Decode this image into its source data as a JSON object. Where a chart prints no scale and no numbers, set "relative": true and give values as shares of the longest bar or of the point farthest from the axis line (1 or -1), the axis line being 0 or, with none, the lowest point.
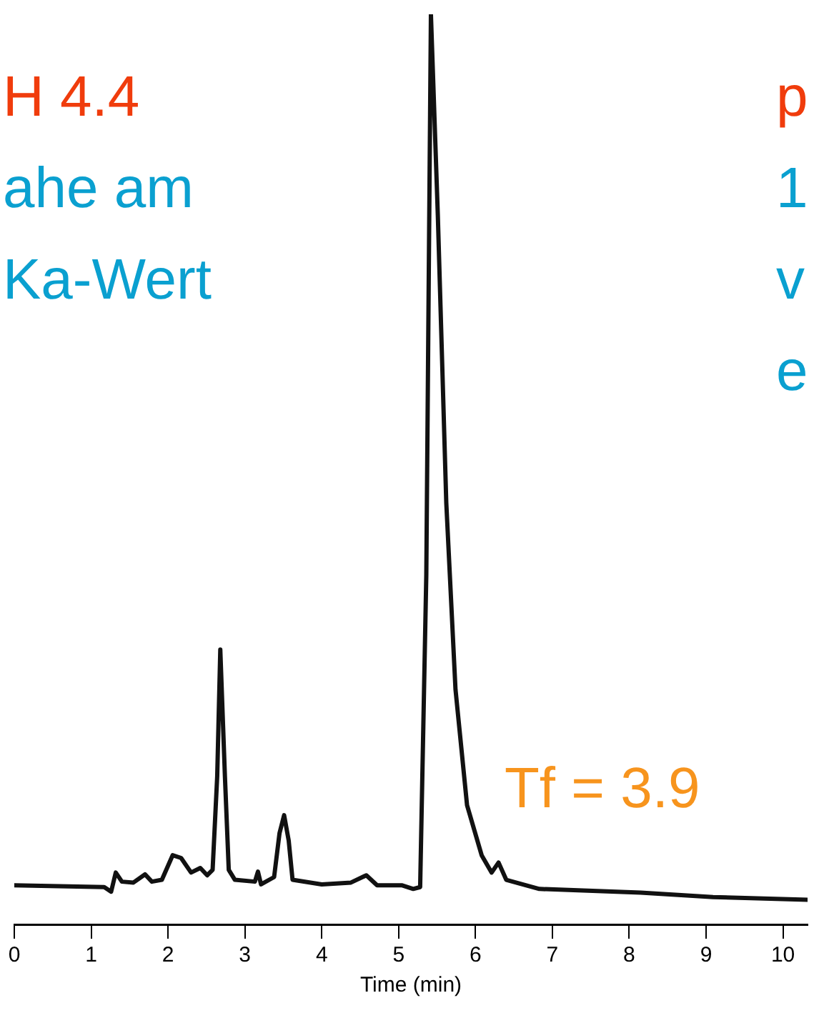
{
  "chart_data": {
    "type": "line",
    "relative": true,
    "xlabel": "Time (min)",
    "xlim": [
      0,
      10.32
    ],
    "xticks": [
      0,
      1,
      2,
      3,
      4,
      5,
      6,
      7,
      8,
      9,
      10
    ],
    "grid": false,
    "legend": false,
    "marker": "none",
    "line_style": "solid",
    "annotations": [
      "H 4.4",
      "ahe am",
      "Ka-Wert",
      "p",
      "1",
      "v",
      "e",
      "Tf = 3.9"
    ],
    "series": [
      {
        "color": "#111111",
        "x": [
          0,
          1.17,
          1.26,
          1.32,
          1.4,
          1.55,
          1.7,
          1.79,
          1.92,
          2.06,
          2.17,
          2.3,
          2.42,
          2.51,
          2.58,
          2.64,
          2.68,
          2.74,
          2.79,
          2.87,
          3.13,
          3.17,
          3.21,
          3.38,
          3.45,
          3.51,
          3.57,
          3.62,
          4.0,
          4.38,
          4.58,
          4.72,
          5.04,
          5.19,
          5.28,
          5.36,
          5.42,
          5.51,
          5.62,
          5.74,
          5.89,
          6.08,
          6.21,
          6.3,
          6.4,
          6.83,
          8.15,
          9.09,
          10.32
        ],
        "values": [
          0.043,
          0.041,
          0.036,
          0.057,
          0.047,
          0.046,
          0.055,
          0.047,
          0.049,
          0.076,
          0.073,
          0.057,
          0.062,
          0.054,
          0.06,
          0.163,
          0.302,
          0.163,
          0.06,
          0.049,
          0.047,
          0.058,
          0.044,
          0.052,
          0.1,
          0.12,
          0.092,
          0.049,
          0.044,
          0.046,
          0.054,
          0.043,
          0.043,
          0.039,
          0.041,
          0.384,
          1.0,
          0.779,
          0.463,
          0.258,
          0.131,
          0.076,
          0.057,
          0.068,
          0.049,
          0.039,
          0.035,
          0.03,
          0.027
        ]
      }
    ]
  }
}
